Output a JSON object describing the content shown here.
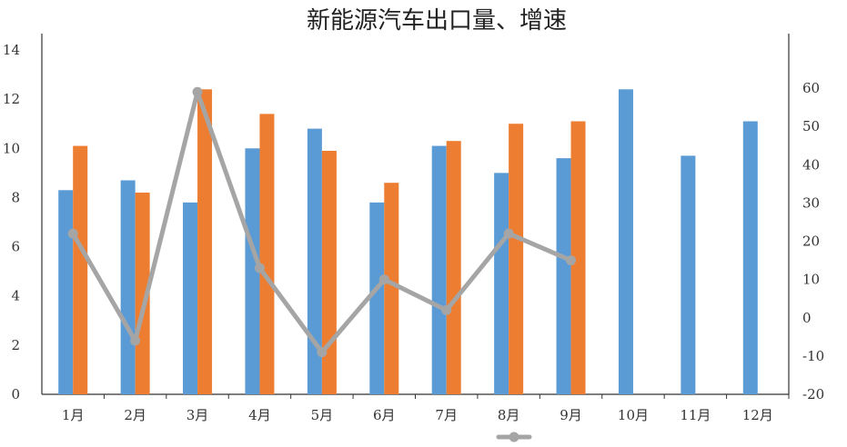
{
  "chart_data": {
    "type": "bar",
    "title": "新能源汽车出口量、增速",
    "categories": [
      "1月",
      "2月",
      "3月",
      "4月",
      "5月",
      "6月",
      "7月",
      "8月",
      "9月",
      "10月",
      "11月",
      "12月"
    ],
    "series": [
      {
        "type": "bar",
        "axis": "left",
        "color": "#5b9bd5",
        "values": [
          8.3,
          8.7,
          7.8,
          10.0,
          10.8,
          7.8,
          10.1,
          9.0,
          9.6,
          12.4,
          9.7,
          11.1
        ]
      },
      {
        "type": "bar",
        "axis": "left",
        "color": "#ed7d31",
        "values": [
          10.1,
          8.2,
          12.4,
          11.4,
          9.9,
          8.6,
          10.3,
          11.0,
          11.1,
          null,
          null,
          null
        ]
      },
      {
        "type": "line",
        "axis": "right",
        "color": "#a5a5a5",
        "values": [
          22,
          -6,
          59,
          13,
          -9,
          10,
          2,
          22,
          15,
          null,
          null,
          null
        ]
      }
    ],
    "y_left": {
      "min": 0,
      "max": 14,
      "ticks": [
        "0",
        "2",
        "4",
        "6",
        "8",
        "10",
        "12",
        "14"
      ]
    },
    "y_right": {
      "min": -20,
      "max": 60,
      "ticks": [
        "-20",
        "-10",
        "0",
        "10",
        "20",
        "30",
        "40",
        "50",
        "60"
      ],
      "negative_color": "#c0392b"
    },
    "grid": false,
    "legend": "bottom"
  }
}
